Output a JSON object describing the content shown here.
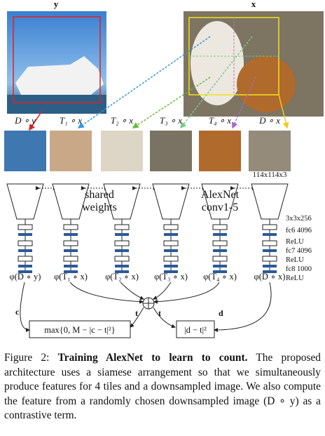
{
  "figure": {
    "image_labels": [
      "y",
      "x"
    ],
    "tile_labels": [
      "D ∘ y",
      "T₁ ∘ x",
      "T₂ ∘ x",
      "T₃ ∘ x",
      "T₄ ∘ x",
      "D ∘ x"
    ],
    "tile_size": "114x114x3",
    "shared_weights": "shared weights",
    "alexnet": "AlexNet conv1-5",
    "layer_labels": [
      "3x3x256",
      "fc6 4096",
      "ReLU",
      "fc7 4096",
      "ReLU",
      "fc8 1000",
      "ReLU"
    ],
    "feature_labels": [
      "φ(D ∘ y)",
      "φ(T₁ ∘ x)",
      "φ(T₂ ∘ x)",
      "φ(T₃ ∘ x)",
      "φ(T₄ ∘ x)",
      "φ(D ∘ x)"
    ],
    "arrow_labels": [
      "c",
      "t",
      "t",
      "d"
    ],
    "contrastive_loss": "max{0, M − |c − t|²}",
    "count_loss": "|d − t|²"
  },
  "caption": {
    "label": "Figure 2:",
    "bold": "Training AlexNet to learn to count.",
    "text": "The proposed architecture uses a siamese arrangement so that we simultaneously produce features for 4 tiles and a downsampled image. We also compute the feature from a randomly chosen downsampled image (D ∘ y) as a contrastive term."
  }
}
